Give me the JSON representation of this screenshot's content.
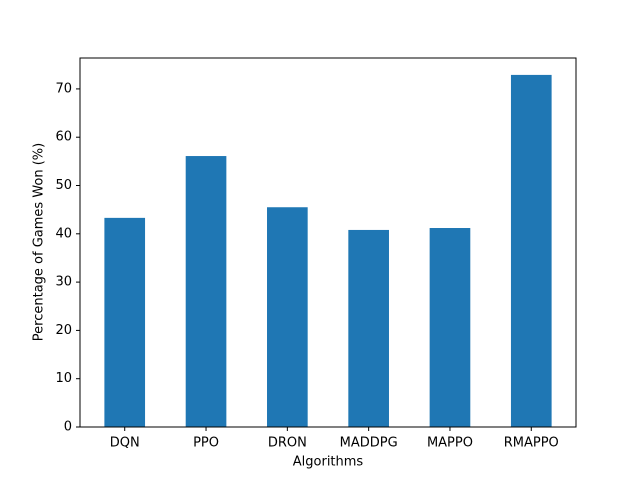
{
  "chart_data": {
    "type": "bar",
    "x_label": "Algorithms",
    "y_label": "Percentage of Games Won (%)",
    "categories": [
      "DQN",
      "PPO",
      "DRON",
      "MADDPG",
      "MAPPO",
      "RMAPPO"
    ],
    "values": [
      43.3,
      56.1,
      45.5,
      40.8,
      41.2,
      72.9
    ],
    "color": "#1f77b4",
    "ylim": [
      0,
      76.4
    ],
    "yticks": [
      0,
      10,
      20,
      30,
      40,
      50,
      60,
      70
    ]
  }
}
